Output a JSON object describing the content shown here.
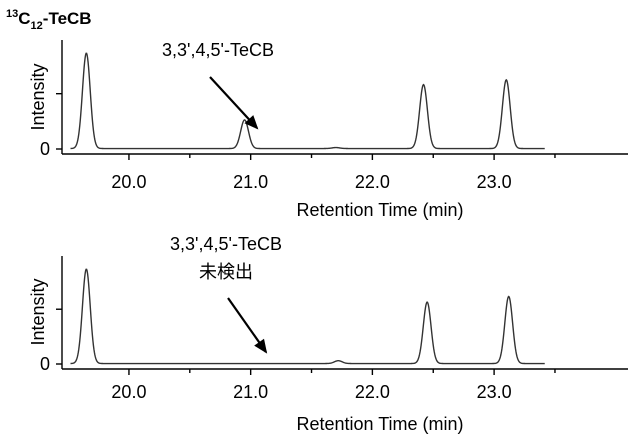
{
  "title": {
    "prefix": "13",
    "main": "C",
    "sub": "12",
    "suffix": "-TeCB"
  },
  "chart_data": [
    {
      "type": "line",
      "xlabel": "Retention Time (min)",
      "ylabel": "Intensity",
      "xlim": [
        19.45,
        24.1
      ],
      "ylim": [
        0,
        1.08
      ],
      "x_ticks": [
        "20.0",
        "21.0",
        "22.0",
        "23.0"
      ],
      "y_ticks": [
        "0"
      ],
      "annotation": {
        "lines": [
          "3,3',4,5'-TeCB"
        ],
        "arrow_to_x": 20.95
      },
      "series": [
        {
          "values": [],
          "peaks": [
            {
              "x": 19.65,
              "height": 1.0
            },
            {
              "x": 20.95,
              "height": 0.3
            },
            {
              "x": 21.7,
              "height": 0.01
            },
            {
              "x": 22.42,
              "height": 0.67
            },
            {
              "x": 23.1,
              "height": 0.72
            }
          ]
        }
      ]
    },
    {
      "type": "line",
      "xlabel": "Retention Time (min)",
      "ylabel": "Intensity",
      "xlim": [
        19.45,
        24.1
      ],
      "ylim": [
        0,
        1.08
      ],
      "x_ticks": [
        "20.0",
        "21.0",
        "22.0",
        "23.0"
      ],
      "y_ticks": [
        "0"
      ],
      "annotation": {
        "lines": [
          "3,3',4,5'-TeCB",
          "未検出"
        ],
        "arrow_to_x": 20.9
      },
      "series": [
        {
          "values": [],
          "peaks": [
            {
              "x": 19.65,
              "height": 1.0
            },
            {
              "x": 21.72,
              "height": 0.03
            },
            {
              "x": 22.45,
              "height": 0.65
            },
            {
              "x": 23.12,
              "height": 0.71
            }
          ]
        }
      ]
    }
  ]
}
